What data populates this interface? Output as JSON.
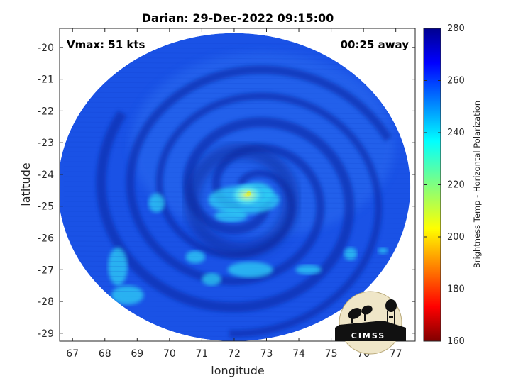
{
  "chart_data": {
    "type": "heatmap",
    "title": "Darian: 29-Dec-2022 09:15:00",
    "xlabel": "longitude",
    "ylabel": "latitude",
    "xlim": [
      66.6,
      77.6
    ],
    "ylim": [
      -29.25,
      -19.4
    ],
    "xticks": [
      67,
      68,
      69,
      70,
      71,
      72,
      73,
      74,
      75,
      76,
      77
    ],
    "yticks": [
      -20,
      -21,
      -22,
      -23,
      -24,
      -25,
      -26,
      -27,
      -28,
      -29
    ],
    "grid": true,
    "annotations": {
      "top_left": "Vmax: 51 kts",
      "top_right": "00:25 away"
    },
    "colorbar": {
      "label": "Brightness Temp - Horizontal Polarization",
      "range": [
        160,
        280
      ],
      "ticks": [
        160,
        180,
        200,
        220,
        240,
        260,
        280
      ],
      "colormap": "jet"
    },
    "swath": {
      "center": [
        72.0,
        -24.4
      ],
      "radius_lon": 5.45,
      "radius_lat": 4.85
    },
    "storm_center": [
      72.4,
      -24.65
    ],
    "background_tb": 258,
    "logo_text": "CIMSS"
  },
  "colors": {
    "swath_base": "#1a52e6",
    "spiral_band": "#0a2fae",
    "warm_feature": "#2fd1f5",
    "eye_peak": "#d8f040"
  }
}
